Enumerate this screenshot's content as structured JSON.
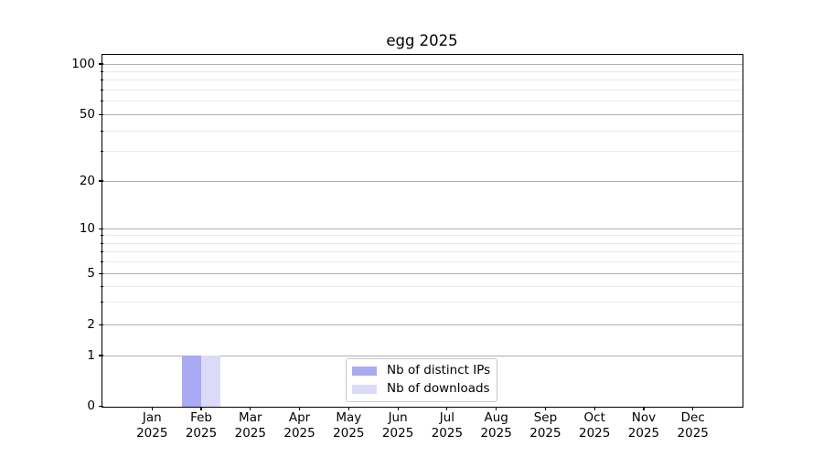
{
  "title": "egg 2025",
  "y_axis": {
    "major_ticks": [
      {
        "label": "0",
        "value": 0
      },
      {
        "label": "1",
        "value": 1
      },
      {
        "label": "2",
        "value": 2
      },
      {
        "label": "5",
        "value": 5
      },
      {
        "label": "10",
        "value": 10
      },
      {
        "label": "20",
        "value": 20
      },
      {
        "label": "50",
        "value": 50
      },
      {
        "label": "100",
        "value": 100
      }
    ],
    "minor_tick_values": [
      3,
      4,
      6,
      7,
      8,
      9,
      30,
      40,
      60,
      70,
      80,
      90
    ]
  },
  "x_axis": {
    "ticks": [
      {
        "month": "Jan",
        "year": "2025"
      },
      {
        "month": "Feb",
        "year": "2025"
      },
      {
        "month": "Mar",
        "year": "2025"
      },
      {
        "month": "Apr",
        "year": "2025"
      },
      {
        "month": "May",
        "year": "2025"
      },
      {
        "month": "Jun",
        "year": "2025"
      },
      {
        "month": "Jul",
        "year": "2025"
      },
      {
        "month": "Aug",
        "year": "2025"
      },
      {
        "month": "Sep",
        "year": "2025"
      },
      {
        "month": "Oct",
        "year": "2025"
      },
      {
        "month": "Nov",
        "year": "2025"
      },
      {
        "month": "Dec",
        "year": "2025"
      }
    ]
  },
  "legend": {
    "items": [
      {
        "label": "Nb of distinct IPs",
        "color": "#a9a9f4"
      },
      {
        "label": "Nb of downloads",
        "color": "#dbdbf8"
      }
    ]
  },
  "chart_data": {
    "type": "bar",
    "title": "egg 2025",
    "categories": [
      "Jan 2025",
      "Feb 2025",
      "Mar 2025",
      "Apr 2025",
      "May 2025",
      "Jun 2025",
      "Jul 2025",
      "Aug 2025",
      "Sep 2025",
      "Oct 2025",
      "Nov 2025",
      "Dec 2025"
    ],
    "series": [
      {
        "name": "Nb of distinct IPs",
        "color": "#a9a9f4",
        "values": [
          0,
          1,
          0,
          0,
          0,
          0,
          0,
          0,
          0,
          0,
          0,
          0
        ]
      },
      {
        "name": "Nb of downloads",
        "color": "#dbdbf8",
        "values": [
          0,
          1,
          0,
          0,
          0,
          0,
          0,
          0,
          0,
          0,
          0,
          0
        ]
      }
    ],
    "xlabel": "",
    "ylabel": "",
    "yscale": "log-like",
    "y_tick_values": [
      0,
      1,
      2,
      5,
      10,
      20,
      50,
      100
    ],
    "ylim": [
      0,
      112
    ],
    "grid": "horizontal, major and minor",
    "legend_position": "lower center (inside axes)"
  },
  "colors": {
    "background": "#ffffff",
    "major_grid": "#b0b0b0",
    "minor_grid": "#e9e9e9",
    "spine": "#000000",
    "text": "#000000",
    "legend_border": "#c9c9c9"
  }
}
